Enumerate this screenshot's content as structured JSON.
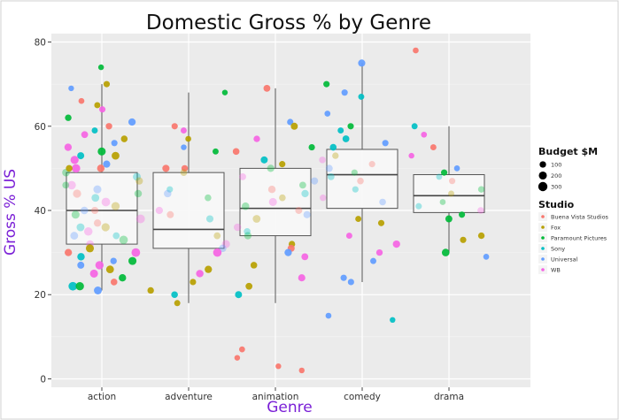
{
  "chart_data": {
    "type": "box",
    "title": "Domestic Gross % by Genre",
    "xlabel": "Genre",
    "ylabel": "Gross % US",
    "ylim": [
      -2,
      82
    ],
    "yticks": [
      0,
      20,
      40,
      60,
      80
    ],
    "categories": [
      "action",
      "adventure",
      "animation",
      "comedy",
      "drama"
    ],
    "boxes": [
      {
        "category": "action",
        "q1": 32,
        "median": 40,
        "q3": 49,
        "whisker_low": 21,
        "whisker_high": 70
      },
      {
        "category": "adventure",
        "q1": 31,
        "median": 35.5,
        "q3": 49,
        "whisker_low": 18,
        "whisker_high": 68
      },
      {
        "category": "animation",
        "q1": 34,
        "median": 40.5,
        "q3": 50,
        "whisker_low": 18,
        "whisker_high": 69
      },
      {
        "category": "comedy",
        "q1": 40.5,
        "median": 48.5,
        "q3": 54.5,
        "whisker_low": 23,
        "whisker_high": 75
      },
      {
        "category": "drama",
        "q1": 39.5,
        "median": 43.5,
        "q3": 48.5,
        "whisker_low": 30,
        "whisker_high": 60
      }
    ],
    "studios": [
      {
        "name": "Buena Vista Studios",
        "color": "#f8766d"
      },
      {
        "name": "Fox",
        "color": "#b79f00"
      },
      {
        "name": "Paramount Pictures",
        "color": "#00ba38"
      },
      {
        "name": "Sony",
        "color": "#00bfc4"
      },
      {
        "name": "Universal",
        "color": "#619cff"
      },
      {
        "name": "WB",
        "color": "#f564e3"
      }
    ],
    "budget_sizes": [
      {
        "label": "100",
        "value": 100
      },
      {
        "label": "200",
        "value": 200
      },
      {
        "label": "300",
        "value": 300
      }
    ],
    "points": [
      {
        "g": 0,
        "y": 74,
        "s": 2,
        "b": 60
      },
      {
        "g": 0,
        "y": 70,
        "s": 1,
        "b": 90
      },
      {
        "g": 0,
        "y": 69,
        "s": 4,
        "b": 60
      },
      {
        "g": 0,
        "y": 66,
        "s": 0,
        "b": 70
      },
      {
        "g": 0,
        "y": 65,
        "s": 1,
        "b": 80
      },
      {
        "g": 0,
        "y": 64,
        "s": 5,
        "b": 90
      },
      {
        "g": 0,
        "y": 62,
        "s": 2,
        "b": 100
      },
      {
        "g": 0,
        "y": 61,
        "s": 4,
        "b": 150
      },
      {
        "g": 0,
        "y": 60,
        "s": 0,
        "b": 100
      },
      {
        "g": 0,
        "y": 59,
        "s": 3,
        "b": 80
      },
      {
        "g": 0,
        "y": 58,
        "s": 5,
        "b": 120
      },
      {
        "g": 0,
        "y": 57,
        "s": 1,
        "b": 110
      },
      {
        "g": 0,
        "y": 56,
        "s": 4,
        "b": 90
      },
      {
        "g": 0,
        "y": 55,
        "s": 5,
        "b": 150
      },
      {
        "g": 0,
        "y": 54,
        "s": 2,
        "b": 200
      },
      {
        "g": 0,
        "y": 53,
        "s": 3,
        "b": 130
      },
      {
        "g": 0,
        "y": 53,
        "s": 1,
        "b": 180
      },
      {
        "g": 0,
        "y": 52,
        "s": 5,
        "b": 210
      },
      {
        "g": 0,
        "y": 51,
        "s": 4,
        "b": 140
      },
      {
        "g": 0,
        "y": 50,
        "s": 0,
        "b": 160
      },
      {
        "g": 0,
        "y": 50,
        "s": 5,
        "b": 230
      },
      {
        "g": 0,
        "y": 49,
        "s": 2,
        "b": 170
      },
      {
        "g": 0,
        "y": 48,
        "s": 3,
        "b": 190
      },
      {
        "g": 0,
        "y": 47,
        "s": 1,
        "b": 150
      },
      {
        "g": 0,
        "y": 46,
        "s": 5,
        "b": 240
      },
      {
        "g": 0,
        "y": 45,
        "s": 4,
        "b": 200
      },
      {
        "g": 0,
        "y": 44,
        "s": 2,
        "b": 160
      },
      {
        "g": 0,
        "y": 44,
        "s": 0,
        "b": 210
      },
      {
        "g": 0,
        "y": 43,
        "s": 3,
        "b": 180
      },
      {
        "g": 0,
        "y": 42,
        "s": 5,
        "b": 250
      },
      {
        "g": 0,
        "y": 41,
        "s": 1,
        "b": 220
      },
      {
        "g": 0,
        "y": 40,
        "s": 4,
        "b": 170
      },
      {
        "g": 0,
        "y": 39,
        "s": 2,
        "b": 200
      },
      {
        "g": 0,
        "y": 38,
        "s": 5,
        "b": 260
      },
      {
        "g": 0,
        "y": 37,
        "s": 0,
        "b": 150
      },
      {
        "g": 0,
        "y": 36,
        "s": 3,
        "b": 190
      },
      {
        "g": 0,
        "y": 36,
        "s": 1,
        "b": 210
      },
      {
        "g": 0,
        "y": 35,
        "s": 5,
        "b": 230
      },
      {
        "g": 0,
        "y": 34,
        "s": 4,
        "b": 180
      },
      {
        "g": 0,
        "y": 33,
        "s": 2,
        "b": 240
      },
      {
        "g": 0,
        "y": 32,
        "s": 5,
        "b": 170
      },
      {
        "g": 0,
        "y": 31,
        "s": 1,
        "b": 200
      },
      {
        "g": 0,
        "y": 30,
        "s": 0,
        "b": 150
      },
      {
        "g": 0,
        "y": 30,
        "s": 5,
        "b": 250
      },
      {
        "g": 0,
        "y": 29,
        "s": 3,
        "b": 160
      },
      {
        "g": 0,
        "y": 28,
        "s": 2,
        "b": 200
      },
      {
        "g": 0,
        "y": 27,
        "s": 5,
        "b": 220
      },
      {
        "g": 0,
        "y": 27,
        "s": 4,
        "b": 130
      },
      {
        "g": 0,
        "y": 26,
        "s": 1,
        "b": 180
      },
      {
        "g": 0,
        "y": 25,
        "s": 5,
        "b": 200
      },
      {
        "g": 0,
        "y": 24,
        "s": 2,
        "b": 150
      },
      {
        "g": 0,
        "y": 23,
        "s": 0,
        "b": 110
      },
      {
        "g": 0,
        "y": 22,
        "s": 3,
        "b": 250
      },
      {
        "g": 0,
        "y": 22,
        "s": 2,
        "b": 220
      },
      {
        "g": 0,
        "y": 21,
        "s": 4,
        "b": 190
      },
      {
        "g": 0,
        "y": 50,
        "s": 1,
        "b": 110
      },
      {
        "g": 0,
        "y": 46,
        "s": 2,
        "b": 120
      },
      {
        "g": 0,
        "y": 40,
        "s": 0,
        "b": 140
      },
      {
        "g": 0,
        "y": 34,
        "s": 3,
        "b": 120
      },
      {
        "g": 0,
        "y": 28,
        "s": 4,
        "b": 100
      },
      {
        "g": 1,
        "y": 68,
        "s": 2,
        "b": 60
      },
      {
        "g": 1,
        "y": 60,
        "s": 0,
        "b": 90
      },
      {
        "g": 1,
        "y": 59,
        "s": 5,
        "b": 80
      },
      {
        "g": 1,
        "y": 57,
        "s": 1,
        "b": 70
      },
      {
        "g": 1,
        "y": 55,
        "s": 4,
        "b": 60
      },
      {
        "g": 1,
        "y": 54,
        "s": 2,
        "b": 80
      },
      {
        "g": 1,
        "y": 50,
        "s": 0,
        "b": 100
      },
      {
        "g": 1,
        "y": 49,
        "s": 1,
        "b": 120
      },
      {
        "g": 1,
        "y": 45,
        "s": 3,
        "b": 90
      },
      {
        "g": 1,
        "y": 44,
        "s": 4,
        "b": 160
      },
      {
        "g": 1,
        "y": 43,
        "s": 2,
        "b": 110
      },
      {
        "g": 1,
        "y": 40,
        "s": 5,
        "b": 150
      },
      {
        "g": 1,
        "y": 39,
        "s": 0,
        "b": 130
      },
      {
        "g": 1,
        "y": 38,
        "s": 3,
        "b": 140
      },
      {
        "g": 1,
        "y": 34,
        "s": 1,
        "b": 120
      },
      {
        "g": 1,
        "y": 32,
        "s": 5,
        "b": 200
      },
      {
        "g": 1,
        "y": 31,
        "s": 4,
        "b": 160
      },
      {
        "g": 1,
        "y": 30,
        "s": 5,
        "b": 230
      },
      {
        "g": 1,
        "y": 26,
        "s": 1,
        "b": 150
      },
      {
        "g": 1,
        "y": 25,
        "s": 5,
        "b": 160
      },
      {
        "g": 1,
        "y": 23,
        "s": 1,
        "b": 90
      },
      {
        "g": 1,
        "y": 21,
        "s": 1,
        "b": 100
      },
      {
        "g": 1,
        "y": 20,
        "s": 3,
        "b": 110
      },
      {
        "g": 1,
        "y": 18,
        "s": 1,
        "b": 80
      },
      {
        "g": 1,
        "y": 50,
        "s": 0,
        "b": 140
      },
      {
        "g": 2,
        "y": 69,
        "s": 0,
        "b": 120
      },
      {
        "g": 2,
        "y": 61,
        "s": 4,
        "b": 90
      },
      {
        "g": 2,
        "y": 60,
        "s": 1,
        "b": 130
      },
      {
        "g": 2,
        "y": 57,
        "s": 5,
        "b": 100
      },
      {
        "g": 2,
        "y": 55,
        "s": 2,
        "b": 90
      },
      {
        "g": 2,
        "y": 54,
        "s": 0,
        "b": 110
      },
      {
        "g": 2,
        "y": 52,
        "s": 3,
        "b": 130
      },
      {
        "g": 2,
        "y": 51,
        "s": 1,
        "b": 90
      },
      {
        "g": 2,
        "y": 50,
        "s": 2,
        "b": 150
      },
      {
        "g": 2,
        "y": 48,
        "s": 5,
        "b": 120
      },
      {
        "g": 2,
        "y": 47,
        "s": 4,
        "b": 140
      },
      {
        "g": 2,
        "y": 45,
        "s": 0,
        "b": 160
      },
      {
        "g": 2,
        "y": 44,
        "s": 3,
        "b": 150
      },
      {
        "g": 2,
        "y": 43,
        "s": 1,
        "b": 110
      },
      {
        "g": 2,
        "y": 42,
        "s": 5,
        "b": 200
      },
      {
        "g": 2,
        "y": 41,
        "s": 2,
        "b": 170
      },
      {
        "g": 2,
        "y": 40,
        "s": 0,
        "b": 130
      },
      {
        "g": 2,
        "y": 39,
        "s": 4,
        "b": 140
      },
      {
        "g": 2,
        "y": 38,
        "s": 1,
        "b": 180
      },
      {
        "g": 2,
        "y": 36,
        "s": 5,
        "b": 160
      },
      {
        "g": 2,
        "y": 34,
        "s": 2,
        "b": 150
      },
      {
        "g": 2,
        "y": 32,
        "s": 1,
        "b": 100
      },
      {
        "g": 2,
        "y": 31,
        "s": 0,
        "b": 130
      },
      {
        "g": 2,
        "y": 30,
        "s": 4,
        "b": 150
      },
      {
        "g": 2,
        "y": 29,
        "s": 5,
        "b": 120
      },
      {
        "g": 2,
        "y": 27,
        "s": 1,
        "b": 110
      },
      {
        "g": 2,
        "y": 24,
        "s": 5,
        "b": 140
      },
      {
        "g": 2,
        "y": 22,
        "s": 1,
        "b": 120
      },
      {
        "g": 2,
        "y": 20,
        "s": 3,
        "b": 130
      },
      {
        "g": 2,
        "y": 7,
        "s": 0,
        "b": 70
      },
      {
        "g": 2,
        "y": 5,
        "s": 0,
        "b": 60
      },
      {
        "g": 2,
        "y": 3,
        "s": 0,
        "b": 60
      },
      {
        "g": 2,
        "y": 2,
        "s": 0,
        "b": 60
      },
      {
        "g": 2,
        "y": 46,
        "s": 2,
        "b": 120
      },
      {
        "g": 2,
        "y": 35,
        "s": 3,
        "b": 110
      },
      {
        "g": 3,
        "y": 75,
        "s": 4,
        "b": 140
      },
      {
        "g": 3,
        "y": 70,
        "s": 2,
        "b": 90
      },
      {
        "g": 3,
        "y": 68,
        "s": 4,
        "b": 90
      },
      {
        "g": 3,
        "y": 67,
        "s": 3,
        "b": 80
      },
      {
        "g": 3,
        "y": 63,
        "s": 4,
        "b": 70
      },
      {
        "g": 3,
        "y": 60,
        "s": 2,
        "b": 90
      },
      {
        "g": 3,
        "y": 59,
        "s": 3,
        "b": 80
      },
      {
        "g": 3,
        "y": 57,
        "s": 3,
        "b": 120
      },
      {
        "g": 3,
        "y": 56,
        "s": 4,
        "b": 90
      },
      {
        "g": 3,
        "y": 55,
        "s": 3,
        "b": 110
      },
      {
        "g": 3,
        "y": 53,
        "s": 1,
        "b": 100
      },
      {
        "g": 3,
        "y": 52,
        "s": 5,
        "b": 110
      },
      {
        "g": 3,
        "y": 51,
        "s": 0,
        "b": 90
      },
      {
        "g": 3,
        "y": 50,
        "s": 4,
        "b": 130
      },
      {
        "g": 3,
        "y": 49,
        "s": 2,
        "b": 90
      },
      {
        "g": 3,
        "y": 48,
        "s": 3,
        "b": 120
      },
      {
        "g": 3,
        "y": 47,
        "s": 0,
        "b": 110
      },
      {
        "g": 3,
        "y": 45,
        "s": 3,
        "b": 90
      },
      {
        "g": 3,
        "y": 43,
        "s": 5,
        "b": 100
      },
      {
        "g": 3,
        "y": 42,
        "s": 4,
        "b": 110
      },
      {
        "g": 3,
        "y": 38,
        "s": 1,
        "b": 80
      },
      {
        "g": 3,
        "y": 37,
        "s": 1,
        "b": 90
      },
      {
        "g": 3,
        "y": 34,
        "s": 5,
        "b": 80
      },
      {
        "g": 3,
        "y": 32,
        "s": 5,
        "b": 150
      },
      {
        "g": 3,
        "y": 30,
        "s": 5,
        "b": 100
      },
      {
        "g": 3,
        "y": 28,
        "s": 4,
        "b": 80
      },
      {
        "g": 3,
        "y": 24,
        "s": 4,
        "b": 90
      },
      {
        "g": 3,
        "y": 23,
        "s": 4,
        "b": 90
      },
      {
        "g": 3,
        "y": 15,
        "s": 4,
        "b": 70
      },
      {
        "g": 3,
        "y": 14,
        "s": 3,
        "b": 60
      },
      {
        "g": 4,
        "y": 78,
        "s": 0,
        "b": 70
      },
      {
        "g": 4,
        "y": 60,
        "s": 3,
        "b": 80
      },
      {
        "g": 4,
        "y": 58,
        "s": 5,
        "b": 70
      },
      {
        "g": 4,
        "y": 55,
        "s": 0,
        "b": 80
      },
      {
        "g": 4,
        "y": 53,
        "s": 5,
        "b": 60
      },
      {
        "g": 4,
        "y": 50,
        "s": 4,
        "b": 70
      },
      {
        "g": 4,
        "y": 49,
        "s": 2,
        "b": 90
      },
      {
        "g": 4,
        "y": 48,
        "s": 3,
        "b": 80
      },
      {
        "g": 4,
        "y": 47,
        "s": 0,
        "b": 90
      },
      {
        "g": 4,
        "y": 45,
        "s": 2,
        "b": 100
      },
      {
        "g": 4,
        "y": 44,
        "s": 1,
        "b": 80
      },
      {
        "g": 4,
        "y": 42,
        "s": 2,
        "b": 70
      },
      {
        "g": 4,
        "y": 41,
        "s": 3,
        "b": 90
      },
      {
        "g": 4,
        "y": 40,
        "s": 5,
        "b": 110
      },
      {
        "g": 4,
        "y": 39,
        "s": 2,
        "b": 90
      },
      {
        "g": 4,
        "y": 38,
        "s": 2,
        "b": 130
      },
      {
        "g": 4,
        "y": 34,
        "s": 1,
        "b": 100
      },
      {
        "g": 4,
        "y": 33,
        "s": 1,
        "b": 90
      },
      {
        "g": 4,
        "y": 30,
        "s": 2,
        "b": 170
      },
      {
        "g": 4,
        "y": 29,
        "s": 4,
        "b": 70
      }
    ]
  }
}
